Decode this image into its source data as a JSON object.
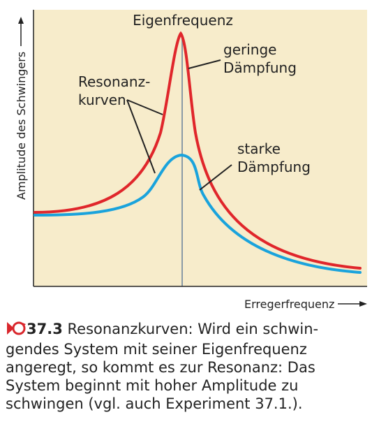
{
  "labels": {
    "y_axis": "Amplitude des Schwingers",
    "x_axis": "Erregerfrequenz",
    "eigenfrequenz": "Eigenfrequenz",
    "resonanz_line1": "Resonanz-",
    "resonanz_line2": "kurven",
    "geringe_line1": "geringe",
    "geringe_line2": "Dämpfung",
    "starke_line1": "starke",
    "starke_line2": "Dämpfung"
  },
  "caption": {
    "number": "37.3",
    "lines": [
      "Resonanzkurven: Wird ein schwin-",
      "gendes System mit seiner Eigenfrequenz",
      "angeregt, so kommt es zur Resonanz: Das",
      "System beginnt mit hoher Amplitude zu",
      "schwingen (vgl. auch Experiment 37.1.)."
    ]
  },
  "colors": {
    "background": "#f7eccb",
    "low_damping": "#e0262b",
    "high_damping": "#1aa3dc",
    "eigen_line": "#8a9aa6",
    "axis": "#222222",
    "caption_icon": "#d9262c"
  },
  "chart_data": {
    "type": "line",
    "xlabel": "Erregerfrequenz",
    "ylabel": "Amplitude des Schwingers",
    "series": [
      {
        "name": "geringe Dämpfung",
        "peak": "Eigenfrequenz"
      },
      {
        "name": "starke Dämpfung",
        "peak": "Eigenfrequenz"
      }
    ]
  }
}
